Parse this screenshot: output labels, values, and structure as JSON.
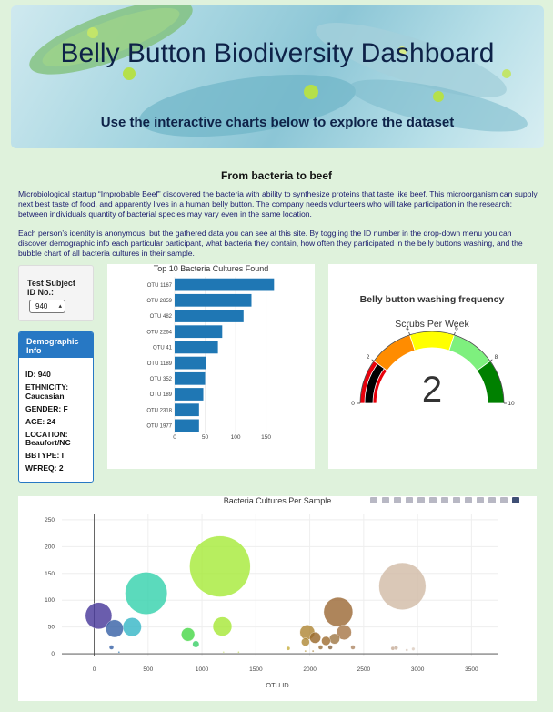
{
  "header": {
    "title": "Belly Button Biodiversity Dashboard",
    "subtitle": "Use the interactive charts below to explore the dataset"
  },
  "intro": {
    "title": "From bacteria to beef",
    "para1": "Microbiological startup “Improbable Beef” discovered the bacteria with ability to synthesize proteins that taste like beef. This microorganism can supply next best taste of food, and apparently lives in a human belly button. The company needs volunteers who will take participation in the research: between individuals quantity of bacterial species may vary even in the same location.",
    "para2": "Each person’s identity is anonymous, but the gathered data you can see at this site. By toggling the ID number in the drop-down menu you can discover demographic info each particular participant, what bacteria they contain, how often they participated in the belly buttons washing, and the bubble chart of all bacteria cultures in their sample."
  },
  "selector": {
    "label_line1": "Test Subject",
    "label_line2": "ID No.:",
    "value": "940"
  },
  "demographic": {
    "title_line1": "Demographic",
    "title_line2": "Info",
    "rows": [
      "ID: 940",
      "ETHNICITY: Caucasian",
      "GENDER: F",
      "AGE: 24",
      "LOCATION: Beaufort/NC",
      "BBTYPE: I",
      "WFREQ: 2"
    ]
  },
  "colors": {
    "bar": "#1f77b4",
    "demo_header": "#2778c4",
    "background": "#dff2dc"
  },
  "chart_data": [
    {
      "type": "bar",
      "orientation": "horizontal",
      "title": "Top 10 Bacteria Cultures Found",
      "categories": [
        "OTU 1167",
        "OTU 2859",
        "OTU 482",
        "OTU 2264",
        "OTU 41",
        "OTU 1189",
        "OTU 352",
        "OTU 189",
        "OTU 2318",
        "OTU 1977"
      ],
      "values": [
        163,
        126,
        113,
        78,
        71,
        51,
        50,
        47,
        40,
        40
      ],
      "xticks": [
        "0",
        "50",
        "100",
        "150"
      ],
      "xlim": [
        0,
        170
      ]
    },
    {
      "type": "gauge",
      "title": "Belly button washing frequency",
      "subtitle": "Scrubs Per Week",
      "value": 2,
      "range": [
        0,
        10
      ],
      "ticks": [
        "0",
        "2",
        "4",
        "6",
        "8",
        "10"
      ],
      "band_colors": [
        "#e8000b",
        "#ff8c00",
        "#ffff00",
        "#7ef07e",
        "#008000"
      ]
    },
    {
      "type": "scatter",
      "subtitle": "bubble",
      "title": "Bacteria Cultures Per Sample",
      "xlabel": "OTU ID",
      "ylabel": "",
      "xlim": [
        -300,
        3750
      ],
      "ylim": [
        -5,
        260
      ],
      "xticks": [
        "0",
        "500",
        "1000",
        "1500",
        "2000",
        "2500",
        "3000",
        "3500"
      ],
      "yticks": [
        "0",
        "50",
        "100",
        "150",
        "200",
        "250"
      ],
      "points": [
        {
          "x": 1167,
          "y": 163,
          "r": 163,
          "c": "#a8eb3c"
        },
        {
          "x": 2859,
          "y": 126,
          "r": 126,
          "c": "#d2bca8"
        },
        {
          "x": 482,
          "y": 113,
          "r": 113,
          "c": "#38d3ae"
        },
        {
          "x": 2264,
          "y": 78,
          "r": 78,
          "c": "#9d6b38"
        },
        {
          "x": 41,
          "y": 71,
          "r": 71,
          "c": "#4a3a9c"
        },
        {
          "x": 352,
          "y": 50,
          "r": 50,
          "c": "#39b8c8"
        },
        {
          "x": 189,
          "y": 47,
          "r": 47,
          "c": "#3a64a8"
        },
        {
          "x": 1189,
          "y": 51,
          "r": 51,
          "c": "#a8e83a"
        },
        {
          "x": 2318,
          "y": 40,
          "r": 40,
          "c": "#a8784a"
        },
        {
          "x": 1977,
          "y": 40,
          "r": 40,
          "c": "#b08838"
        },
        {
          "x": 870,
          "y": 36,
          "r": 36,
          "c": "#4ad84a"
        },
        {
          "x": 943,
          "y": 18,
          "r": 18,
          "c": "#3ed06a"
        },
        {
          "x": 1960,
          "y": 22,
          "r": 22,
          "c": "#b08a3a"
        },
        {
          "x": 2050,
          "y": 30,
          "r": 30,
          "c": "#9a6a2c"
        },
        {
          "x": 2150,
          "y": 24,
          "r": 24,
          "c": "#a07034"
        },
        {
          "x": 2230,
          "y": 28,
          "r": 28,
          "c": "#a07a48"
        },
        {
          "x": 2100,
          "y": 12,
          "r": 12,
          "c": "#9c7440"
        },
        {
          "x": 2190,
          "y": 12,
          "r": 12,
          "c": "#8c6a44"
        },
        {
          "x": 2400,
          "y": 12,
          "r": 12,
          "c": "#b08a68"
        },
        {
          "x": 2770,
          "y": 10,
          "r": 10,
          "c": "#c8ad98"
        },
        {
          "x": 2800,
          "y": 11,
          "r": 11,
          "c": "#c8b09e"
        },
        {
          "x": 2900,
          "y": 7,
          "r": 7,
          "c": "#d4c4b6"
        },
        {
          "x": 2960,
          "y": 9,
          "r": 9,
          "c": "#dccdc0"
        },
        {
          "x": 1800,
          "y": 10,
          "r": 10,
          "c": "#c8b040"
        },
        {
          "x": 1960,
          "y": 5,
          "r": 5,
          "c": "#b89a44"
        },
        {
          "x": 2030,
          "y": 5,
          "r": 5,
          "c": "#a8843c"
        },
        {
          "x": 1340,
          "y": 3,
          "r": 3,
          "c": "#c8e070"
        },
        {
          "x": 1200,
          "y": 3,
          "r": 3,
          "c": "#d8e890"
        },
        {
          "x": 160,
          "y": 12,
          "r": 12,
          "c": "#3a64a8"
        },
        {
          "x": 230,
          "y": 3,
          "r": 3,
          "c": "#3a80b8"
        }
      ]
    }
  ]
}
